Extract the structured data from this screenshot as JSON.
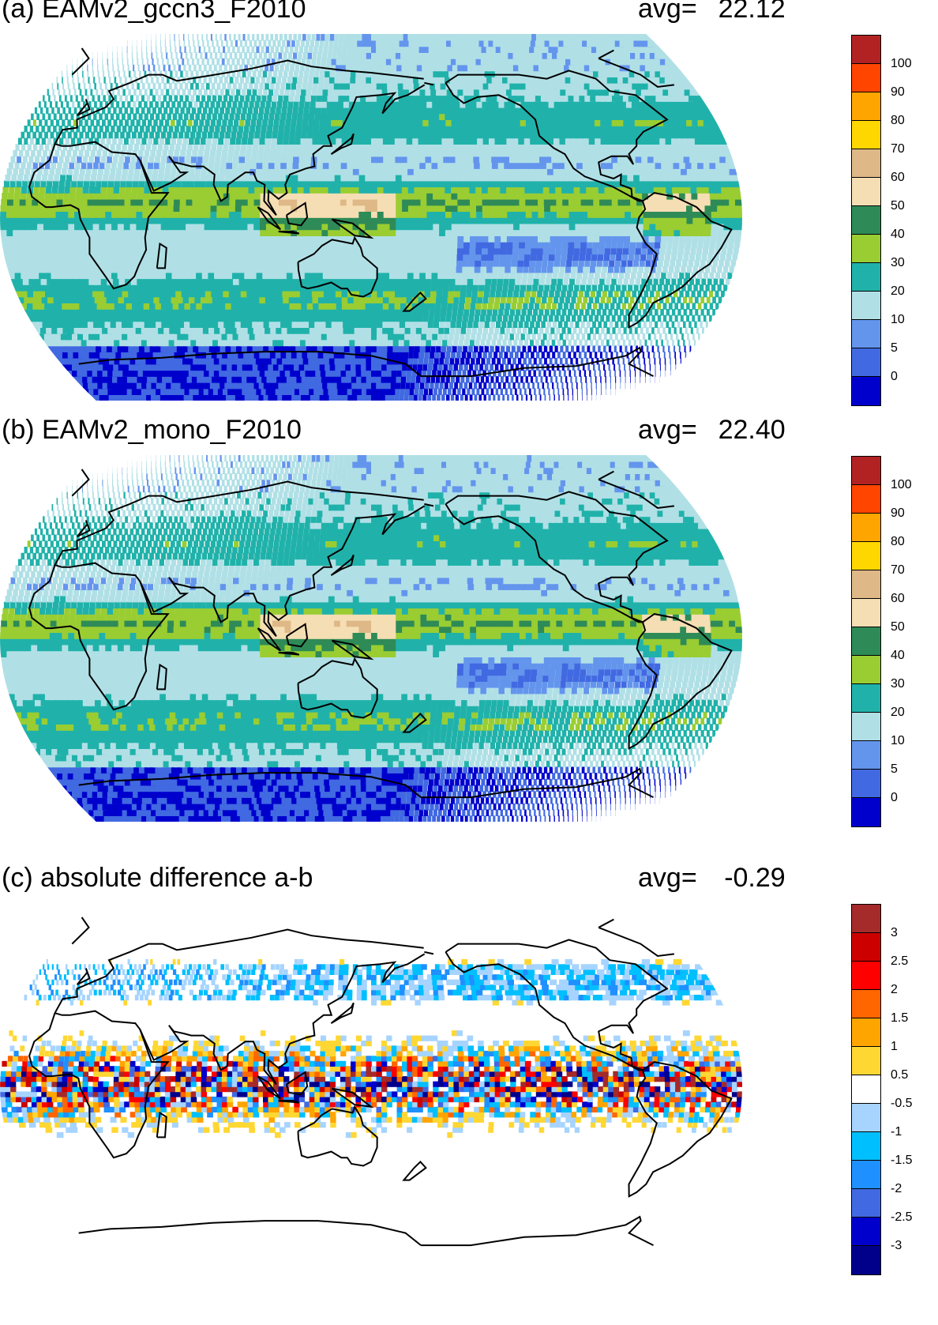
{
  "panels": [
    {
      "id": "a",
      "title": "(a) EAMv2_gccn3_F2010",
      "avg_label": "avg=",
      "avg_value": "22.12",
      "field_kind": "absolute",
      "colorbar": {
        "colors": [
          "#b22222",
          "#ff4500",
          "#ffa500",
          "#ffd700",
          "#deb887",
          "#f5deb3",
          "#2e8b57",
          "#9acd32",
          "#20b2aa",
          "#b0e0e6",
          "#6495ed",
          "#4169e1",
          "#0000cd"
        ],
        "labels": [
          "100",
          "90",
          "80",
          "70",
          "60",
          "50",
          "40",
          "30",
          "20",
          "10",
          "5",
          "0"
        ]
      }
    },
    {
      "id": "b",
      "title": "(b) EAMv2_mono_F2010",
      "avg_label": "avg=",
      "avg_value": "22.40",
      "field_kind": "absolute",
      "colorbar": {
        "colors": [
          "#b22222",
          "#ff4500",
          "#ffa500",
          "#ffd700",
          "#deb887",
          "#f5deb3",
          "#2e8b57",
          "#9acd32",
          "#20b2aa",
          "#b0e0e6",
          "#6495ed",
          "#4169e1",
          "#0000cd"
        ],
        "labels": [
          "100",
          "90",
          "80",
          "70",
          "60",
          "50",
          "40",
          "30",
          "20",
          "10",
          "5",
          "0"
        ]
      }
    },
    {
      "id": "c",
      "title": "(c) absolute difference a-b",
      "avg_label": "avg=",
      "avg_value": "-0.29",
      "field_kind": "difference",
      "colorbar": {
        "colors": [
          "#a52a2a",
          "#cd0000",
          "#ff0000",
          "#ff6600",
          "#ffa500",
          "#ffd733",
          "#ffffff",
          "#a6d4ff",
          "#00bfff",
          "#1e90ff",
          "#4169e1",
          "#0000cd",
          "#00008b"
        ],
        "labels": [
          "3",
          "2.5",
          "2",
          "1.5",
          "1",
          "0.5",
          "-0.5",
          "-1",
          "-1.5",
          "-2",
          "-2.5",
          "-3"
        ]
      }
    }
  ]
}
